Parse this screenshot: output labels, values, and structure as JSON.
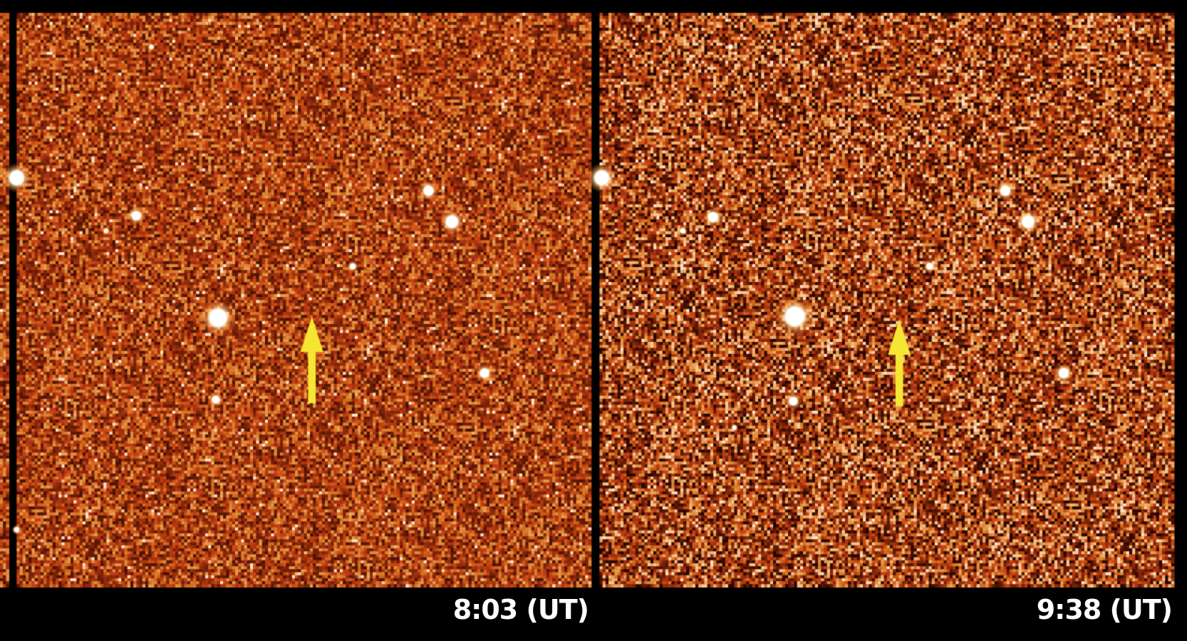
{
  "panels": [
    {
      "time_label": "8:03 (UT)"
    },
    {
      "time_label": "9:38 (UT)"
    }
  ],
  "partial_left_label": ")",
  "colors": {
    "background": "#000000",
    "field": "#c0441a",
    "arrow": "#f5e633",
    "star": "#ffffff"
  },
  "icons": [
    "arrow-up-icon"
  ]
}
